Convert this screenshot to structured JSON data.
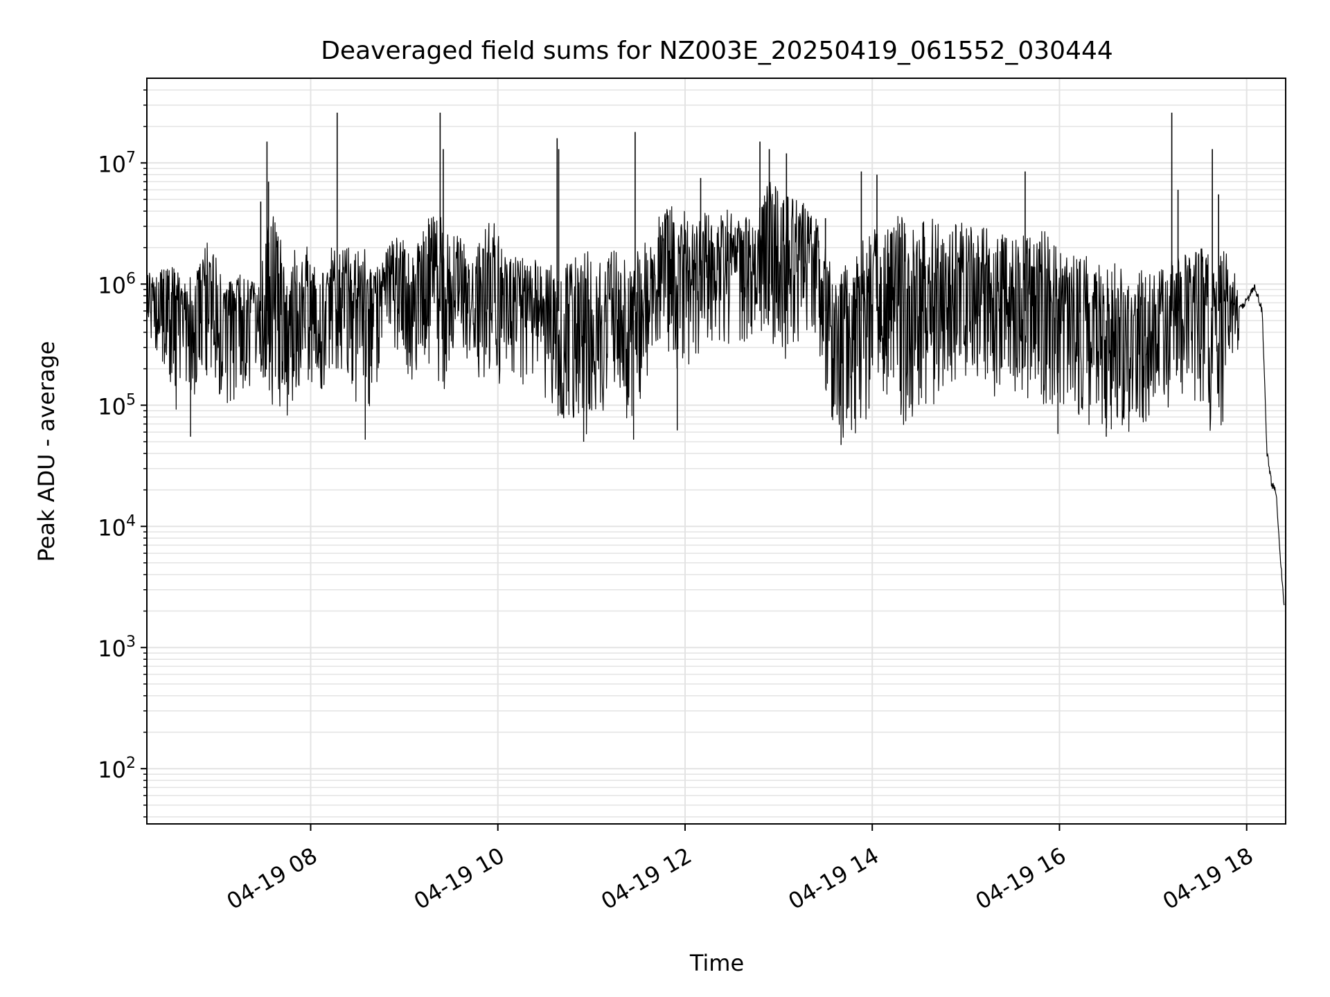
{
  "chart_data": {
    "type": "line",
    "title": "Deaveraged field sums for NZ003E_20250419_061552_030444",
    "xlabel": "Time",
    "ylabel": "Peak ADU - average",
    "x_scale": "time",
    "y_scale": "log",
    "xlim": [
      "2025-04-19 06:15",
      "2025-04-19 18:25"
    ],
    "ylim": [
      35,
      50000000
    ],
    "x_ticks": [
      {
        "t": "2025-04-19 08:00",
        "label": "04-19 08"
      },
      {
        "t": "2025-04-19 10:00",
        "label": "04-19 10"
      },
      {
        "t": "2025-04-19 12:00",
        "label": "04-19 12"
      },
      {
        "t": "2025-04-19 14:00",
        "label": "04-19 14"
      },
      {
        "t": "2025-04-19 16:00",
        "label": "04-19 16"
      },
      {
        "t": "2025-04-19 18:00",
        "label": "04-19 18"
      }
    ],
    "y_ticks": [
      {
        "value": 100,
        "base": "10",
        "exp": "2"
      },
      {
        "value": 1000,
        "base": "10",
        "exp": "3"
      },
      {
        "value": 10000,
        "base": "10",
        "exp": "4"
      },
      {
        "value": 100000,
        "base": "10",
        "exp": "5"
      },
      {
        "value": 1000000,
        "base": "10",
        "exp": "6"
      },
      {
        "value": 10000000,
        "base": "10",
        "exp": "7"
      }
    ],
    "grid": true,
    "line_color": "#000000",
    "grid_color": "#e3e3e3",
    "series": [
      {
        "x": [
          "2025-04-19 06:15",
          "2025-04-19 06:25",
          "2025-04-19 06:35",
          "2025-04-19 06:45",
          "2025-04-19 06:55",
          "2025-04-19 07:05",
          "2025-04-19 07:15",
          "2025-04-19 07:25",
          "2025-04-19 07:35",
          "2025-04-19 07:45",
          "2025-04-19 07:55",
          "2025-04-19 08:05",
          "2025-04-19 08:15",
          "2025-04-19 08:25",
          "2025-04-19 08:35",
          "2025-04-19 08:45",
          "2025-04-19 08:55",
          "2025-04-19 09:05",
          "2025-04-19 09:15",
          "2025-04-19 09:25",
          "2025-04-19 09:35",
          "2025-04-19 09:45",
          "2025-04-19 09:55",
          "2025-04-19 10:05",
          "2025-04-19 10:15",
          "2025-04-19 10:25",
          "2025-04-19 10:35",
          "2025-04-19 10:45",
          "2025-04-19 10:55",
          "2025-04-19 11:05",
          "2025-04-19 11:15",
          "2025-04-19 11:25",
          "2025-04-19 11:35",
          "2025-04-19 11:45",
          "2025-04-19 11:55",
          "2025-04-19 12:05",
          "2025-04-19 12:15",
          "2025-04-19 12:25",
          "2025-04-19 12:35",
          "2025-04-19 12:45",
          "2025-04-19 12:55",
          "2025-04-19 13:05",
          "2025-04-19 13:15",
          "2025-04-19 13:25",
          "2025-04-19 13:35",
          "2025-04-19 13:45",
          "2025-04-19 13:55",
          "2025-04-19 14:05",
          "2025-04-19 14:15",
          "2025-04-19 14:25",
          "2025-04-19 14:35",
          "2025-04-19 14:45",
          "2025-04-19 14:55",
          "2025-04-19 15:05",
          "2025-04-19 15:15",
          "2025-04-19 15:25",
          "2025-04-19 15:35",
          "2025-04-19 15:45",
          "2025-04-19 15:55",
          "2025-04-19 16:05",
          "2025-04-19 16:15",
          "2025-04-19 16:25",
          "2025-04-19 16:35",
          "2025-04-19 16:45",
          "2025-04-19 16:55",
          "2025-04-19 17:05",
          "2025-04-19 17:15",
          "2025-04-19 17:25",
          "2025-04-19 17:35",
          "2025-04-19 17:45",
          "2025-04-19 17:55",
          "2025-04-19 18:00",
          "2025-04-19 18:05",
          "2025-04-19 18:10",
          "2025-04-19 18:13",
          "2025-04-19 18:16",
          "2025-04-19 18:19",
          "2025-04-19 18:22",
          "2025-04-19 18:24"
        ],
        "y_low": [
          450000,
          200000,
          80000,
          120000,
          150000,
          100000,
          90000,
          200000,
          100000,
          70000,
          150000,
          120000,
          200000,
          150000,
          55000,
          200000,
          300000,
          150000,
          200000,
          100000,
          300000,
          200000,
          100000,
          200000,
          150000,
          100000,
          60000,
          80000,
          55000,
          70000,
          120000,
          60000,
          150000,
          300000,
          200000,
          200000,
          300000,
          300000,
          300000,
          400000,
          300000,
          200000,
          400000,
          300000,
          60000,
          50000,
          60000,
          150000,
          80000,
          60000,
          80000,
          120000,
          150000,
          200000,
          100000,
          150000,
          100000,
          100000,
          80000,
          100000,
          65000,
          70000,
          60000,
          60000,
          70000,
          90000,
          100000,
          80000,
          60000,
          70000,
          300000,
          400000,
          700000,
          500000,
          25000,
          16000,
          17000,
          1000,
          500
        ],
        "y_high": [
          1200000,
          1500000,
          1300000,
          1100000,
          2600000,
          1000000,
          1200000,
          1000000,
          4800000,
          1500000,
          2700000,
          1300000,
          2200000,
          2000000,
          2000000,
          1500000,
          2800000,
          2000000,
          3500000,
          4000000,
          2500000,
          1800000,
          4000000,
          1700000,
          1800000,
          1700000,
          1500000,
          1700000,
          2000000,
          1500000,
          2000000,
          1500000,
          2500000,
          4000000,
          5000000,
          3500000,
          4000000,
          4500000,
          3500000,
          4000000,
          8000000,
          6000000,
          5000000,
          3500000,
          1200000,
          1500000,
          2500000,
          3000000,
          4500000,
          3000000,
          4000000,
          3000000,
          4000000,
          3000000,
          3000000,
          2500000,
          2500000,
          3000000,
          2500000,
          1800000,
          1800000,
          1500000,
          1500000,
          1300000,
          1300000,
          1300000,
          1700000,
          2000000,
          2000000,
          2000000,
          1100000,
          1200000,
          1200000,
          700000,
          60000,
          30000,
          20000,
          17000,
          8000
        ],
        "spikes": [
          {
            "t": "2025-04-19 07:28",
            "y": 4800000
          },
          {
            "t": "2025-04-19 07:32",
            "y": 15000000
          },
          {
            "t": "2025-04-19 07:33",
            "y": 7000000
          },
          {
            "t": "2025-04-19 08:17",
            "y": 26000000
          },
          {
            "t": "2025-04-19 09:23",
            "y": 26000000
          },
          {
            "t": "2025-04-19 09:25",
            "y": 13000000
          },
          {
            "t": "2025-04-19 10:38",
            "y": 16000000
          },
          {
            "t": "2025-04-19 10:39",
            "y": 13000000
          },
          {
            "t": "2025-04-19 11:28",
            "y": 18000000
          },
          {
            "t": "2025-04-19 12:10",
            "y": 7500000
          },
          {
            "t": "2025-04-19 12:48",
            "y": 15000000
          },
          {
            "t": "2025-04-19 12:54",
            "y": 13000000
          },
          {
            "t": "2025-04-19 13:05",
            "y": 12000000
          },
          {
            "t": "2025-04-19 13:30",
            "y": 3500000
          },
          {
            "t": "2025-04-19 13:53",
            "y": 8500000
          },
          {
            "t": "2025-04-19 14:03",
            "y": 8000000
          },
          {
            "t": "2025-04-19 15:38",
            "y": 8500000
          },
          {
            "t": "2025-04-19 17:12",
            "y": 26000000
          },
          {
            "t": "2025-04-19 17:16",
            "y": 6000000
          },
          {
            "t": "2025-04-19 17:38",
            "y": 13000000
          },
          {
            "t": "2025-04-19 17:42",
            "y": 5500000
          }
        ],
        "dips": [
          {
            "t": "2025-04-19 06:43",
            "y": 55000
          },
          {
            "t": "2025-04-19 08:35",
            "y": 52000
          },
          {
            "t": "2025-04-19 10:55",
            "y": 50000
          },
          {
            "t": "2025-04-19 11:27",
            "y": 52000
          },
          {
            "t": "2025-04-19 11:55",
            "y": 62000
          },
          {
            "t": "2025-04-19 13:40",
            "y": 47000
          },
          {
            "t": "2025-04-19 15:59",
            "y": 58000
          },
          {
            "t": "2025-04-19 16:30",
            "y": 55000
          }
        ]
      }
    ]
  }
}
